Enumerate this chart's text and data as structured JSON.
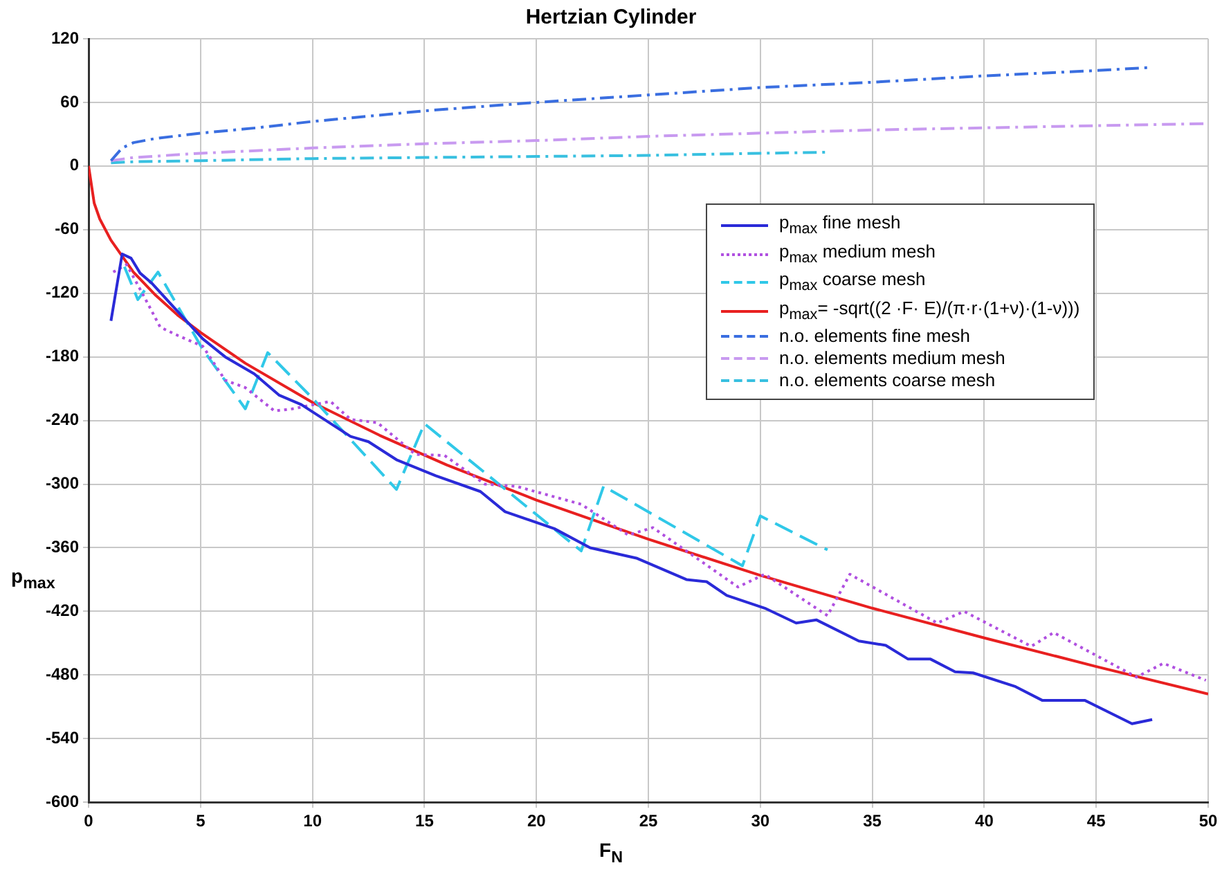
{
  "chart_data": {
    "type": "line",
    "title": "Hertzian Cylinder",
    "xlabel": "F$_{N}$",
    "ylabel": "p$_{max}$",
    "xlim": [
      0,
      50
    ],
    "xticks": [
      0,
      5,
      10,
      15,
      20,
      25,
      30,
      35,
      40,
      45,
      50
    ],
    "ylim": [
      -600,
      120
    ],
    "yticks": [
      -600,
      -540,
      -480,
      -420,
      -360,
      -300,
      -240,
      -180,
      -120,
      -60,
      0,
      60,
      120
    ],
    "grid": true,
    "legend": "top right",
    "marker": "none",
    "series": [
      {
        "name": "p$_{max}$ fine mesh",
        "color": "#2a2ad8",
        "line_style": "solid",
        "x": [
          1.0,
          1.5,
          1.9,
          2.3,
          2.8,
          5.1,
          6.1,
          7.4,
          8.5,
          9.5,
          11.7,
          12.5,
          13.75,
          15.5,
          17.5,
          18.6,
          20.8,
          22.4,
          24.5,
          26.7,
          27.6,
          28.5,
          30.2,
          31.6,
          32.5,
          34.4,
          35.6,
          36.6,
          37.6,
          38.7,
          39.5,
          41.4,
          42.6,
          44.5,
          46.6,
          47.5
        ],
        "values": [
          -146,
          -83,
          -87,
          -101,
          -110,
          -163,
          -180,
          -196,
          -216,
          -225,
          -255,
          -260,
          -277,
          -292,
          -307,
          -326,
          -342,
          -360,
          -370,
          -390,
          -392,
          -405,
          -417,
          -431,
          -428,
          -448,
          -452,
          -465,
          -465,
          -477,
          -478,
          -491,
          -504,
          -504,
          -526,
          -522
        ]
      },
      {
        "name": "p$_{max}$  medium mesh",
        "color": "#b050e0",
        "line_style": "dotted",
        "x": [
          1.1,
          1.7,
          2.5,
          3.2,
          4.0,
          5.1,
          6.1,
          7.0,
          8.3,
          9.1,
          10.8,
          11.7,
          12.9,
          14.6,
          15.9,
          17.7,
          19.1,
          22.0,
          24.1,
          25.2,
          29.0,
          30.2,
          33.0,
          34.0,
          37.9,
          39.1,
          42.1,
          43.1,
          46.8,
          48.0,
          49.9
        ],
        "values": [
          -100,
          -93,
          -124,
          -152,
          -160,
          -170,
          -202,
          -209,
          -231,
          -229,
          -222,
          -239,
          -242,
          -272,
          -273,
          -300,
          -302,
          -319,
          -348,
          -341,
          -397,
          -385,
          -424,
          -385,
          -431,
          -420,
          -453,
          -440,
          -482,
          -469,
          -485
        ]
      },
      {
        "name": "p$_{max}$  coarse mesh",
        "color": "#30c8e8",
        "line_style": "dashed",
        "x": [
          1.6,
          2.2,
          3.1,
          5.1,
          7.0,
          8.0,
          10.0,
          13.75,
          15.0,
          22.0,
          23.0,
          29.2,
          30.0,
          33.0
        ],
        "values": [
          -95,
          -126,
          -100,
          -173,
          -229,
          -176,
          -219,
          -305,
          -243,
          -363,
          -302,
          -377,
          -330,
          -362
        ]
      },
      {
        "name": "p$_{max}$= -sqrt((2 ·F· E)/(π·r·(1+ν)·(1-ν)))",
        "color": "#e82020",
        "line_style": "solid",
        "x": [
          0,
          0.25,
          0.5,
          1,
          2,
          3,
          4,
          5,
          7,
          10,
          13,
          16,
          20,
          25,
          30,
          35,
          40,
          45,
          50
        ],
        "values": [
          0,
          -35,
          -50,
          -70,
          -100,
          -122,
          -141,
          -157,
          -186,
          -223,
          -254,
          -282,
          -315,
          -352,
          -386,
          -417,
          -445,
          -472,
          -498
        ]
      },
      {
        "name": "n.o. elements fine mesh",
        "color": "#3a6ee0",
        "line_style": "dashdot",
        "x": [
          1,
          1.5,
          2,
          3,
          5,
          7.5,
          10,
          15,
          20,
          25,
          30,
          35,
          40,
          45,
          47.5
        ],
        "values": [
          5,
          17,
          22,
          26,
          31,
          36,
          42,
          52,
          60,
          67,
          74,
          79,
          85,
          90,
          93
        ]
      },
      {
        "name": "n.o. elements medium mesh",
        "color": "#c89af0",
        "line_style": "dashdot",
        "x": [
          1,
          2,
          5,
          10,
          15,
          20,
          25,
          30,
          35,
          40,
          45,
          50
        ],
        "values": [
          5,
          8,
          12,
          17,
          21,
          24,
          28,
          31,
          34,
          36,
          38,
          40
        ]
      },
      {
        "name": "n.o. elements coarse mesh",
        "color": "#38c0e0",
        "line_style": "dashdot",
        "x": [
          1,
          2,
          5,
          10,
          15,
          20,
          25,
          30,
          33
        ],
        "values": [
          3,
          4,
          5,
          7,
          8,
          9,
          10,
          12,
          13
        ]
      }
    ]
  }
}
